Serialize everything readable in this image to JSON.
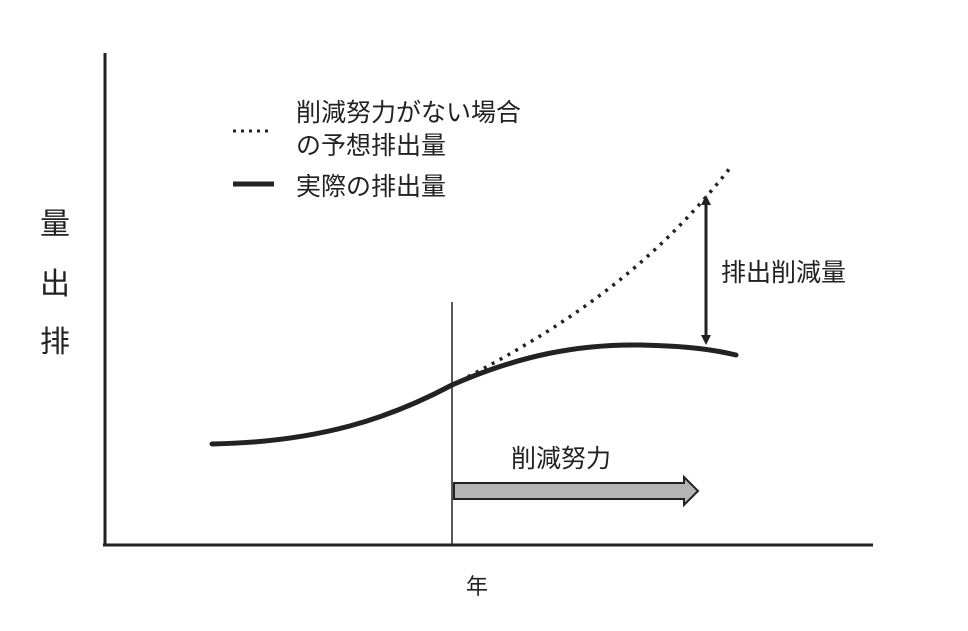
{
  "diagram": {
    "y_axis_label": "排出量",
    "x_axis_label": "年",
    "legend": {
      "dotted_line_label_line1": "削減努力がない場合",
      "dotted_line_label_line2": "の予想排出量",
      "solid_line_label": "実際の排出量"
    },
    "reduction_amount_label": "排出削減量",
    "reduction_effort_label": "削減努力",
    "colors": {
      "line": "#222222",
      "effort_arrow_fill": "#b4b4b4"
    },
    "icons": {
      "legend_dotted": "dotted-line-swatch",
      "legend_solid": "solid-line-swatch",
      "reduction_arrow": "double-headed-arrow",
      "effort_arrow": "block-arrow-right"
    }
  }
}
